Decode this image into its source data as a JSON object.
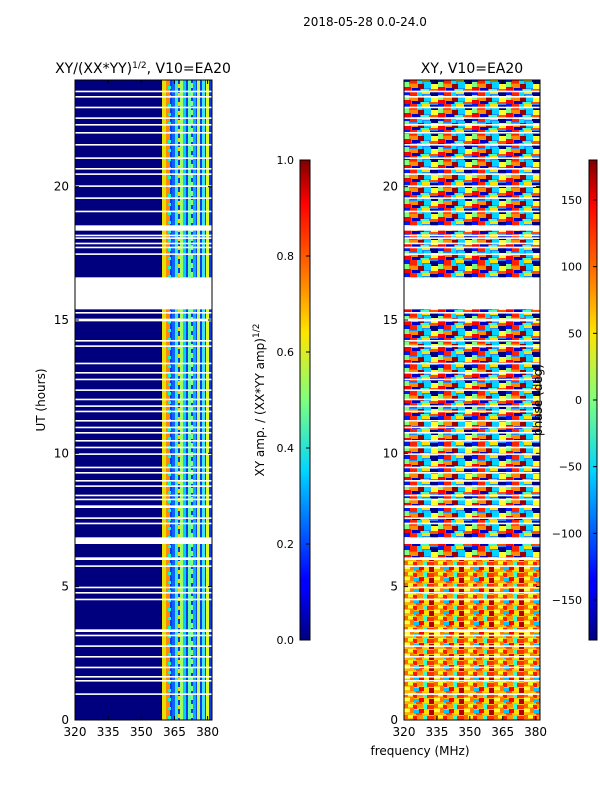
{
  "suptitle": "2018-05-28 0.0-24.0",
  "xlabel": "frequency (MHz)",
  "colors": {
    "bg_left": "#00007f",
    "white": "#ffffff",
    "frame": "#000000"
  },
  "chart_data": [
    {
      "type": "heatmap",
      "title": "XY/(XX*YY)",
      "title_sup": "1/2",
      "title_suffix": ", V10=EA20",
      "ylabel": "UT (hours)",
      "xlim": [
        320,
        382
      ],
      "ylim": [
        0,
        24
      ],
      "xticks": [
        320,
        335,
        350,
        365,
        380
      ],
      "yticks": [
        0,
        5,
        10,
        15,
        20
      ],
      "colorbar": {
        "label": "XY amp. / (XX*YY amp)",
        "label_sup": "1/2",
        "range": [
          0.0,
          1.0
        ],
        "ticks": [
          "0.0",
          "0.2",
          "0.4",
          "0.6",
          "0.8",
          "1.0"
        ],
        "colormap": "jet"
      }
    },
    {
      "type": "heatmap",
      "title": "XY, V10=EA20",
      "ylabel": "",
      "xlim": [
        320,
        382
      ],
      "ylim": [
        0,
        24
      ],
      "xticks": [
        320,
        335,
        350,
        365,
        380
      ],
      "yticks": [
        0,
        5,
        10,
        15,
        20
      ],
      "colorbar": {
        "label": "phase (deg)",
        "range": [
          -180,
          180
        ],
        "ticks": [
          "-150",
          "-100",
          "-50",
          "0",
          "50",
          "100",
          "150"
        ],
        "colormap": "jet"
      }
    }
  ],
  "flagged_ut_hours": [
    [
      0.95,
      1.0
    ],
    [
      1.45,
      1.5
    ],
    [
      1.6,
      1.65
    ],
    [
      1.95,
      2.0
    ],
    [
      2.35,
      2.4
    ],
    [
      2.75,
      2.8
    ],
    [
      3.15,
      3.2
    ],
    [
      3.3,
      3.4
    ],
    [
      4.5,
      4.55
    ],
    [
      4.75,
      4.8
    ],
    [
      4.95,
      5.0
    ],
    [
      5.75,
      5.8
    ],
    [
      6.0,
      6.1
    ],
    [
      6.6,
      6.85
    ],
    [
      7.35,
      7.4
    ],
    [
      7.55,
      7.6
    ],
    [
      7.95,
      8.05
    ],
    [
      8.25,
      8.3
    ],
    [
      8.4,
      8.45
    ],
    [
      8.75,
      8.8
    ],
    [
      8.95,
      9.0
    ],
    [
      9.25,
      9.3
    ],
    [
      9.45,
      9.5
    ],
    [
      9.95,
      10.0
    ],
    [
      10.2,
      10.25
    ],
    [
      10.45,
      10.5
    ],
    [
      10.75,
      10.8
    ],
    [
      10.95,
      11.0
    ],
    [
      11.2,
      11.25
    ],
    [
      11.55,
      11.6
    ],
    [
      11.75,
      11.8
    ],
    [
      12.0,
      12.05
    ],
    [
      12.35,
      12.4
    ],
    [
      12.75,
      12.8
    ],
    [
      13.0,
      13.05
    ],
    [
      13.35,
      13.4
    ],
    [
      14.0,
      14.05
    ],
    [
      14.2,
      14.25
    ],
    [
      14.95,
      15.05
    ],
    [
      15.25,
      15.3
    ],
    [
      15.4,
      16.6
    ],
    [
      17.45,
      17.5
    ],
    [
      17.7,
      17.75
    ],
    [
      17.85,
      17.9
    ],
    [
      18.05,
      18.1
    ],
    [
      18.15,
      18.2
    ],
    [
      18.35,
      18.55
    ],
    [
      19.05,
      19.1
    ],
    [
      19.55,
      19.6
    ],
    [
      20.0,
      20.05
    ],
    [
      20.45,
      20.5
    ],
    [
      20.65,
      20.7
    ],
    [
      21.05,
      21.1
    ],
    [
      21.55,
      21.6
    ],
    [
      22.0,
      22.05
    ],
    [
      22.3,
      22.35
    ],
    [
      22.55,
      22.6
    ],
    [
      22.95,
      23.0
    ],
    [
      23.35,
      23.4
    ],
    [
      23.55,
      23.6
    ]
  ]
}
